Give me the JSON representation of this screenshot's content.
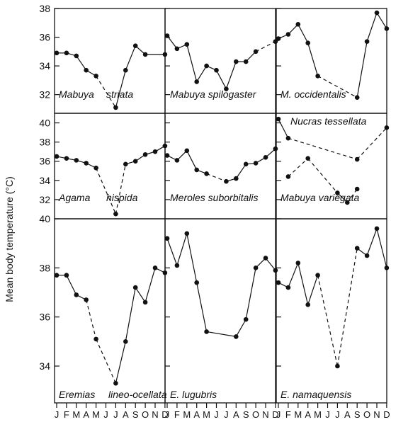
{
  "chart_data": {
    "type": "line",
    "ylabel": "Mean body temperature (°C)",
    "x_tick_labels": [
      "J",
      "F",
      "M",
      "A",
      "M",
      "J",
      "J",
      "A",
      "S",
      "O",
      "N",
      "D"
    ],
    "line_styles": {
      "solid": "continuous monthly samples",
      "dashed": "gap between sampled months"
    },
    "rows": [
      {
        "ylim": [
          30.7,
          38
        ],
        "yticks": [
          32,
          34,
          36,
          38
        ]
      },
      {
        "ylim": [
          30,
          41
        ],
        "yticks": [
          32,
          34,
          36,
          38,
          40
        ]
      },
      {
        "ylim": [
          32.5,
          40
        ],
        "yticks": [
          34,
          36,
          38,
          40
        ]
      }
    ],
    "panels": [
      {
        "row": 0,
        "col": 0,
        "labels": [
          "Mabuya",
          "striata"
        ],
        "series": [
          {
            "points": [
              [
                1,
                34.9
              ],
              [
                2,
                34.9
              ],
              [
                3,
                34.7
              ],
              [
                4,
                33.7
              ],
              [
                5,
                33.3
              ],
              [
                7,
                31.1
              ],
              [
                8,
                33.7
              ],
              [
                9,
                35.4
              ],
              [
                10,
                34.8
              ],
              [
                12,
                34.8
              ]
            ],
            "dashed_after": [
              5
            ]
          }
        ]
      },
      {
        "row": 0,
        "col": 1,
        "labels": [
          "Mabuya spilogaster"
        ],
        "series": [
          {
            "points": [
              [
                1,
                36.1
              ],
              [
                2,
                35.2
              ],
              [
                3,
                35.5
              ],
              [
                4,
                32.9
              ],
              [
                5,
                34.0
              ],
              [
                6,
                33.7
              ],
              [
                7,
                32.4
              ],
              [
                8,
                34.3
              ],
              [
                9,
                34.3
              ],
              [
                10,
                35.0
              ],
              [
                12,
                35.7
              ]
            ],
            "dashed_after": [
              10
            ]
          }
        ]
      },
      {
        "row": 0,
        "col": 2,
        "labels": [
          "M. occidentalis"
        ],
        "series": [
          {
            "points": [
              [
                1,
                35.9
              ],
              [
                2,
                36.2
              ],
              [
                3,
                36.9
              ],
              [
                4,
                35.6
              ],
              [
                5,
                33.3
              ],
              [
                9,
                31.8
              ],
              [
                10,
                35.7
              ],
              [
                11,
                37.7
              ],
              [
                12,
                36.6
              ]
            ],
            "dashed_after": [
              5
            ]
          }
        ]
      },
      {
        "row": 1,
        "col": 0,
        "labels": [
          "Agama",
          "hispida"
        ],
        "series": [
          {
            "points": [
              [
                1,
                36.5
              ],
              [
                2,
                36.3
              ],
              [
                3,
                36.1
              ],
              [
                4,
                35.8
              ],
              [
                5,
                35.3
              ],
              [
                7,
                30.5
              ],
              [
                8,
                35.7
              ],
              [
                9,
                36.0
              ],
              [
                10,
                36.7
              ],
              [
                11,
                37.0
              ],
              [
                12,
                37.6
              ]
            ],
            "dashed_after": [
              5,
              7
            ]
          }
        ]
      },
      {
        "row": 1,
        "col": 1,
        "labels": [
          "Meroles suborbitalis"
        ],
        "series": [
          {
            "points": [
              [
                1,
                36.6
              ],
              [
                2,
                36.1
              ],
              [
                3,
                37.1
              ],
              [
                4,
                35.1
              ],
              [
                5,
                34.7
              ],
              [
                7,
                33.9
              ],
              [
                8,
                34.2
              ],
              [
                9,
                35.7
              ],
              [
                10,
                35.8
              ],
              [
                11,
                36.4
              ],
              [
                12,
                37.3
              ]
            ],
            "dashed_after": [
              5
            ]
          }
        ]
      },
      {
        "row": 1,
        "col": 2,
        "labels": [
          "Nucras tessellata",
          "Mabuya variegata"
        ],
        "series": [
          {
            "points": [
              [
                1,
                40.4
              ],
              [
                2,
                38.4
              ],
              [
                9,
                36.2
              ],
              [
                12,
                39.5
              ]
            ],
            "dashed_after": [
              2,
              9
            ]
          },
          {
            "points": [
              [
                2,
                34.4
              ],
              [
                4,
                36.3
              ],
              [
                7,
                32.7
              ],
              [
                8,
                31.7
              ],
              [
                9,
                33.1
              ]
            ],
            "dashed_after": [
              2,
              4,
              8
            ]
          }
        ]
      },
      {
        "row": 2,
        "col": 0,
        "labels": [
          "Eremias",
          "lineo-ocellata"
        ],
        "series": [
          {
            "points": [
              [
                1,
                37.7
              ],
              [
                2,
                37.7
              ],
              [
                3,
                36.9
              ],
              [
                4,
                36.7
              ],
              [
                5,
                35.1
              ],
              [
                7,
                33.3
              ],
              [
                8,
                35.0
              ],
              [
                9,
                37.2
              ],
              [
                10,
                36.6
              ],
              [
                11,
                38.0
              ],
              [
                12,
                37.8
              ]
            ],
            "dashed_after": [
              4,
              5
            ]
          }
        ]
      },
      {
        "row": 2,
        "col": 1,
        "labels": [
          "E. lugubris"
        ],
        "series": [
          {
            "points": [
              [
                1,
                39.2
              ],
              [
                2,
                38.1
              ],
              [
                3,
                39.4
              ],
              [
                4,
                37.4
              ],
              [
                5,
                35.4
              ],
              [
                8,
                35.2
              ],
              [
                9,
                35.9
              ],
              [
                10,
                38.0
              ],
              [
                11,
                38.4
              ],
              [
                12,
                37.9
              ]
            ],
            "dashed_after": []
          }
        ]
      },
      {
        "row": 2,
        "col": 2,
        "labels": [
          "E. namaquensis"
        ],
        "series": [
          {
            "points": [
              [
                1,
                37.4
              ],
              [
                2,
                37.2
              ],
              [
                3,
                38.2
              ],
              [
                4,
                36.5
              ],
              [
                5,
                37.7
              ],
              [
                7,
                34.0
              ],
              [
                9,
                38.8
              ],
              [
                10,
                38.5
              ],
              [
                11,
                39.6
              ],
              [
                12,
                38.0
              ]
            ],
            "dashed_after": [
              5,
              7
            ]
          }
        ]
      }
    ]
  }
}
